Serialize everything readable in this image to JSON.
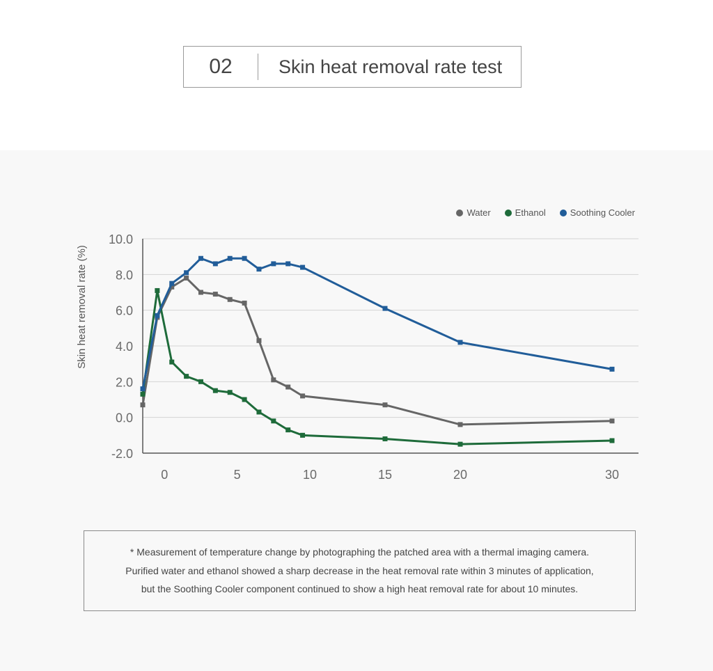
{
  "header": {
    "number": "02",
    "title": "Skin heat removal rate test"
  },
  "legend": [
    {
      "label": "Water",
      "color": "#666666"
    },
    {
      "label": "Ethanol",
      "color": "#1e6b3a"
    },
    {
      "label": "Soothing Cooler",
      "color": "#215d99"
    }
  ],
  "chart_data": {
    "type": "line",
    "title": "",
    "xlabel": "",
    "ylabel": "Skin heat removal rate (%)",
    "ylim": [
      -2.0,
      10.0
    ],
    "yticks": [
      -2.0,
      0.0,
      2.0,
      4.0,
      6.0,
      8.0,
      10.0
    ],
    "ytick_labels": [
      "-2.0",
      "0.0",
      "2.0",
      "4.0",
      "6.0",
      "8.0",
      "10.0"
    ],
    "x_categories": [
      -1.5,
      -0.5,
      0.5,
      1.5,
      2.5,
      3.5,
      4.5,
      5.5,
      6.5,
      7.5,
      8.5,
      9.5,
      15,
      20,
      30
    ],
    "xticks": [
      0,
      5,
      10,
      15,
      20,
      30
    ],
    "grid": true,
    "legend_position": "top-right",
    "series": [
      {
        "name": "Water",
        "color": "#666666",
        "values": [
          0.7,
          5.6,
          7.3,
          7.8,
          7.0,
          6.9,
          6.6,
          6.4,
          4.3,
          2.1,
          1.7,
          1.2,
          0.7,
          -0.4,
          -0.2
        ]
      },
      {
        "name": "Ethanol",
        "color": "#1e6b3a",
        "values": [
          1.3,
          7.1,
          3.1,
          2.3,
          2.0,
          1.5,
          1.4,
          1.0,
          0.3,
          -0.2,
          -0.7,
          -1.0,
          -1.2,
          -1.5,
          -1.3
        ]
      },
      {
        "name": "Soothing Cooler",
        "color": "#215d99",
        "values": [
          1.6,
          5.7,
          7.5,
          8.1,
          8.9,
          8.6,
          8.9,
          8.9,
          8.3,
          8.6,
          8.6,
          8.4,
          6.1,
          4.2,
          2.7
        ]
      }
    ]
  },
  "note": {
    "line1": "* Measurement of temperature change by photographing the patched area with a thermal imaging camera.",
    "line2": "Purified water and ethanol showed a sharp decrease in the heat removal rate within 3 minutes of application,",
    "line3": "but the Soothing Cooler component continued to show a high heat removal rate for about 10 minutes."
  }
}
